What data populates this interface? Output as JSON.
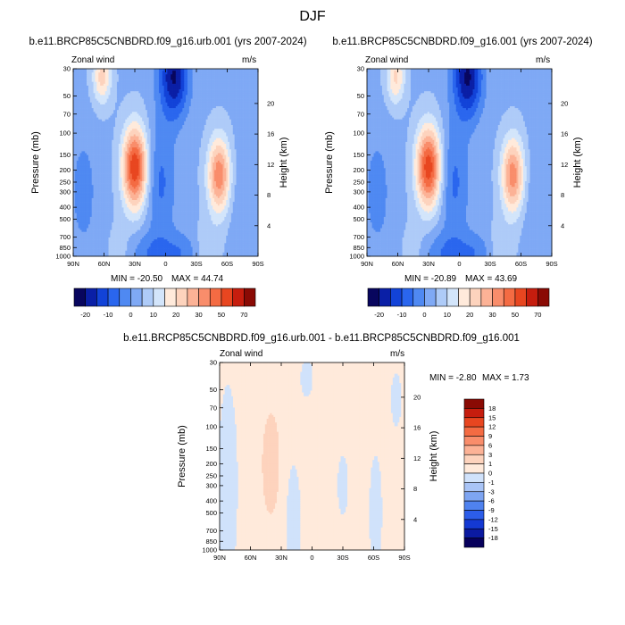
{
  "figure": {
    "title": "DJF"
  },
  "colors": {
    "scale": [
      "#08065e",
      "#0a1fa6",
      "#1243d8",
      "#2a66ee",
      "#4f89f2",
      "#7fa9f5",
      "#aecbf8",
      "#d3e5fb",
      "#ffeadb",
      "#fdd3bd",
      "#fcb296",
      "#f98d6b",
      "#f46b43",
      "#e84620",
      "#c61d0e",
      "#8a0a04"
    ],
    "diff": [
      "#07005c",
      "#0b1aa1",
      "#1439d3",
      "#2c5de9",
      "#4f82ef",
      "#7ea5f2",
      "#a9c4f6",
      "#d0e2fb",
      "#ffeadb",
      "#fdd3bd",
      "#fcb296",
      "#f98d6b",
      "#f46b43",
      "#e84620",
      "#c61d0e",
      "#8a0a04"
    ]
  },
  "chart_data": [
    {
      "type": "heatmap",
      "title": "b.e11.BRCP85C5CNBDRD.f09_g16.urb.001 (yrs 2007-2024)",
      "left_label": "Zonal wind",
      "right_label": "m/s",
      "xlabel": "",
      "ylabel": "Pressure (mb)",
      "y2label": "Height (km)",
      "xticks": [
        "90N",
        "60N",
        "30N",
        "0",
        "30S",
        "60S",
        "90S"
      ],
      "yticks": [
        "30",
        "50",
        "70",
        "100",
        "150",
        "200",
        "250",
        "300",
        "400",
        "500",
        "700",
        "850",
        "1000"
      ],
      "y2ticks": [
        "20",
        "16",
        "12",
        "8",
        "4"
      ],
      "min": -20.5,
      "max": 44.74,
      "min_text": "MIN = -20.50",
      "max_text": "MAX =  44.74",
      "colorbar": [
        "-20",
        "-10",
        "0",
        "10",
        "20",
        "30",
        "50",
        "70"
      ],
      "features": [
        {
          "lat": 30,
          "pressure": 180,
          "value": 44.74
        },
        {
          "lat": 62,
          "pressure": 40,
          "value": 22
        },
        {
          "lat": -52,
          "pressure": 210,
          "value": 34
        },
        {
          "lat": -8,
          "pressure": 40,
          "value": -20.5
        }
      ]
    },
    {
      "type": "heatmap",
      "title": "b.e11.BRCP85C5CNBDRD.f09_g16.001 (yrs 2007-2024)",
      "left_label": "Zonal wind",
      "right_label": "m/s",
      "xlabel": "",
      "ylabel": "Pressure (mb)",
      "y2label": "Height (km)",
      "xticks": [
        "90N",
        "60N",
        "30N",
        "0",
        "30S",
        "60S",
        "90S"
      ],
      "yticks": [
        "30",
        "50",
        "70",
        "100",
        "150",
        "200",
        "250",
        "300",
        "400",
        "500",
        "700",
        "850",
        "1000"
      ],
      "y2ticks": [
        "20",
        "16",
        "12",
        "8",
        "4"
      ],
      "min": -20.89,
      "max": 43.69,
      "min_text": "MIN = -20.89",
      "max_text": "MAX =  43.69",
      "colorbar": [
        "-20",
        "-10",
        "0",
        "10",
        "20",
        "30",
        "50",
        "70"
      ],
      "features": [
        {
          "lat": 30,
          "pressure": 180,
          "value": 43.69
        },
        {
          "lat": 62,
          "pressure": 40,
          "value": 21
        },
        {
          "lat": -52,
          "pressure": 210,
          "value": 33
        },
        {
          "lat": -8,
          "pressure": 40,
          "value": -20.89
        }
      ]
    },
    {
      "type": "heatmap",
      "title": "b.e11.BRCP85C5CNBDRD.f09_g16.urb.001 - b.e11.BRCP85C5CNBDRD.f09_g16.001",
      "left_label": "Zonal wind",
      "right_label": "m/s",
      "xlabel": "",
      "ylabel": "Pressure (mb)",
      "y2label": "Height (km)",
      "xticks": [
        "90N",
        "60N",
        "30N",
        "0",
        "30S",
        "60S",
        "90S"
      ],
      "yticks": [
        "30",
        "50",
        "70",
        "100",
        "150",
        "200",
        "250",
        "300",
        "400",
        "500",
        "700",
        "850",
        "1000"
      ],
      "y2ticks": [
        "20",
        "16",
        "12",
        "8",
        "4"
      ],
      "min": -2.8,
      "max": 1.73,
      "min_text": "MIN = -2.80",
      "max_text": "MAX =   1.73",
      "colorbar": [
        "18",
        "15",
        "12",
        "9",
        "6",
        "3",
        "1",
        "0",
        "-1",
        "-3",
        "-6",
        "-9",
        "-12",
        "-15",
        "-18"
      ]
    }
  ]
}
